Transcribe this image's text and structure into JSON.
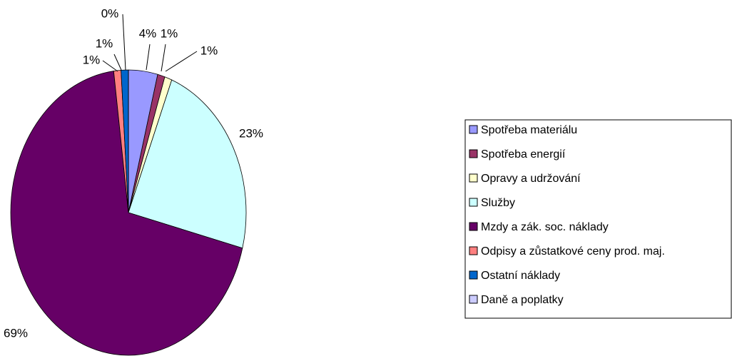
{
  "chart_data": {
    "type": "pie",
    "categories": [
      "Spotřeba materiálu",
      "Spotřeba energií",
      "Opravy a udržování",
      "Služby",
      "Mzdy a zák. soc. náklady",
      "Odpisy a zůstatkové ceny prod. maj.",
      "Ostatní náklady",
      "Daně a poplatky"
    ],
    "values": [
      4,
      1,
      1,
      23,
      69,
      1,
      1,
      0
    ],
    "value_labels": [
      "4%",
      "1%",
      "1%",
      "23%",
      "69%",
      "1%",
      "1%",
      "0%"
    ],
    "colors": [
      "#9999ff",
      "#993366",
      "#ffffcc",
      "#ccffff",
      "#660066",
      "#ff8080",
      "#0066cc",
      "#ccccff"
    ],
    "legend": "right"
  }
}
